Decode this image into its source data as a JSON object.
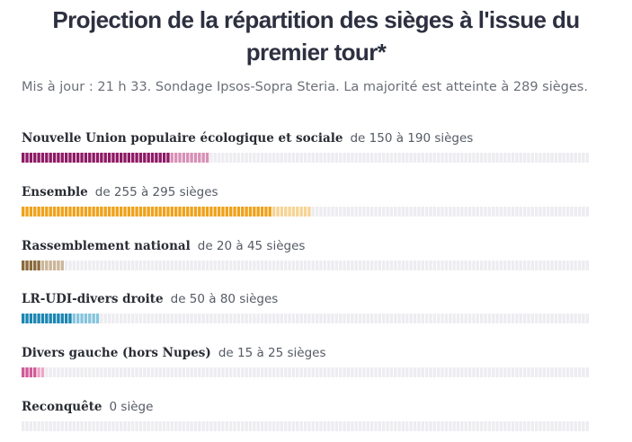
{
  "header": {
    "title_line1": "Projection de la répartition des sièges à l'issue du",
    "title_line2": "premier tour*",
    "subtitle": "Mis à jour : 21 h 33. Sondage Ipsos-Sopra Steria. La majorité est atteinte à 289 sièges."
  },
  "chart_data": {
    "type": "bar",
    "total_seats": 577,
    "categories": [
      "Nouvelle Union populaire écologique et sociale",
      "Ensemble",
      "Rassemblement national",
      "LR-UDI-divers droite",
      "Divers gauche (hors Nupes)",
      "Reconquête"
    ],
    "series": [
      {
        "name": "min",
        "values": [
          150,
          255,
          20,
          50,
          15,
          0
        ]
      },
      {
        "name": "max",
        "values": [
          190,
          295,
          45,
          80,
          25,
          0
        ]
      }
    ],
    "range_labels": [
      "de 150 à 190 sièges",
      "de 255 à 295 sièges",
      "de 20 à 45 sièges",
      "de 50 à 80 sièges",
      "de 15 à 25 sièges",
      "0 siège"
    ],
    "colors": {
      "dark": [
        "#8e1a66",
        "#efa21b",
        "#8b6a3c",
        "#1b86b2",
        "#d05a98",
        "#444444"
      ],
      "light": [
        "#d890b6",
        "#f6d496",
        "#cbb69a",
        "#86c4dc",
        "#eba6c8",
        "#aaaaaa"
      ],
      "empty": "#ededf1"
    }
  }
}
